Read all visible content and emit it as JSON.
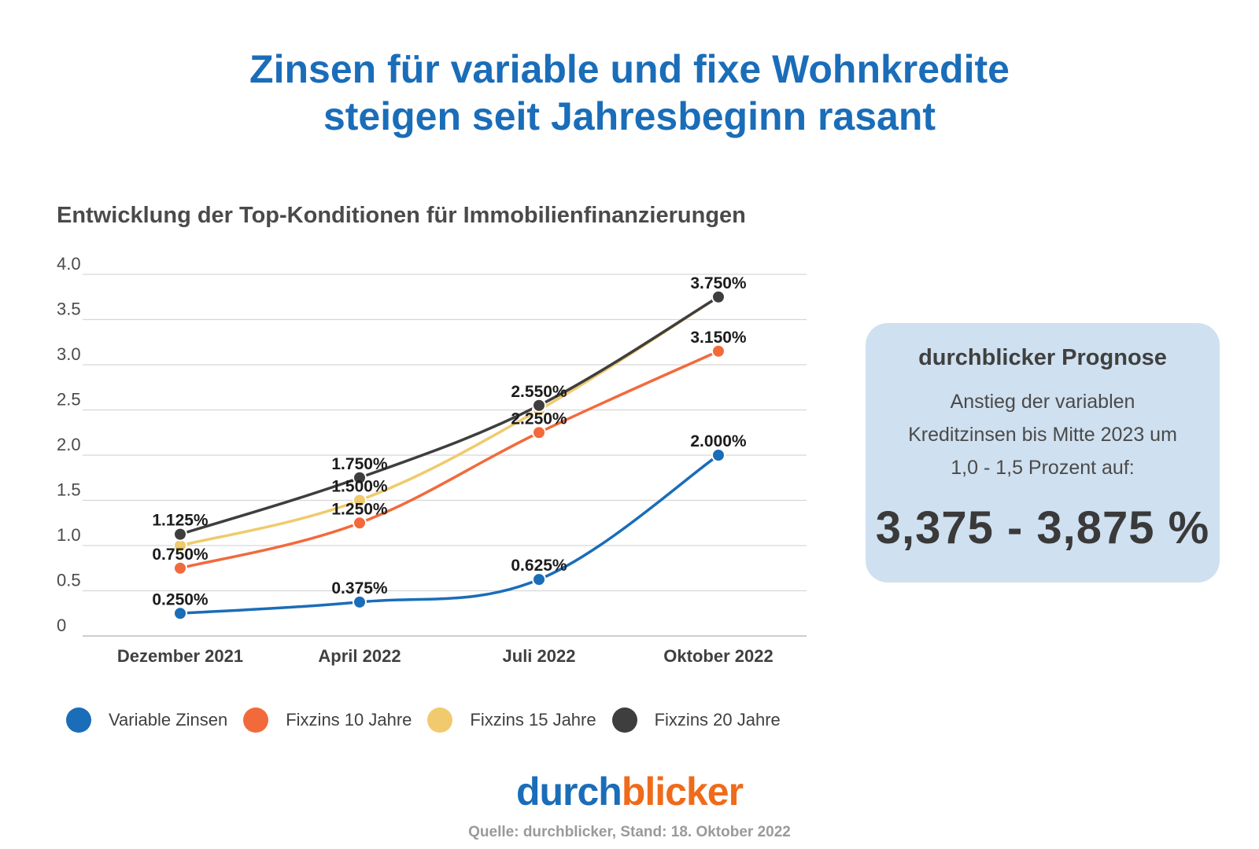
{
  "title": {
    "line1": "Zinsen für variable und fixe Wohnkredite",
    "line2": "steigen seit Jahresbeginn rasant"
  },
  "chart_data": {
    "type": "line",
    "title": "Entwicklung der Top-Konditionen für Immobilienfinanzierungen",
    "categories": [
      "Dezember 2021",
      "April 2022",
      "Juli 2022",
      "Oktober 2022"
    ],
    "y_ticks": [
      "0",
      "0.5",
      "1.0",
      "1.5",
      "2.0",
      "2.5",
      "3.0",
      "3.5",
      "4.0"
    ],
    "ylim": [
      0,
      4
    ],
    "grid": true,
    "legend_position": "bottom",
    "series": [
      {
        "name": "Variable Zinsen",
        "color": "#1a6db8",
        "values": [
          0.25,
          0.375,
          0.625,
          2.0
        ],
        "labels": [
          "0.250%",
          "0.375%",
          "0.625%",
          "2.000%"
        ]
      },
      {
        "name": "Fixzins 10 Jahre",
        "color": "#f26a3c",
        "values": [
          0.75,
          1.25,
          2.25,
          3.15
        ],
        "labels": [
          "0.750%",
          "1.250%",
          "2.250%",
          "3.150%"
        ]
      },
      {
        "name": "Fixzins 15 Jahre",
        "color": "#f0ca6c",
        "values": [
          1.0,
          1.5,
          2.5,
          3.75
        ],
        "labels": [
          "",
          "1.500%",
          "",
          ""
        ]
      },
      {
        "name": "Fixzins 20 Jahre",
        "color": "#3e3e3e",
        "values": [
          1.125,
          1.75,
          2.55,
          3.75
        ],
        "labels": [
          "1.125%",
          "1.750%",
          "2.550%",
          "3.750%"
        ]
      }
    ]
  },
  "prognose": {
    "title": "durchblicker Prognose",
    "line1": "Anstieg der variablen",
    "line2": "Kreditzinsen bis Mitte 2023 um",
    "line3": "1,0 - 1,5 Prozent auf:",
    "value": "3,375 - 3,875 %"
  },
  "brand": {
    "part1": "durch",
    "part2": "blicker"
  },
  "source": "Quelle: durchblicker, Stand: 18. Oktober 2022"
}
